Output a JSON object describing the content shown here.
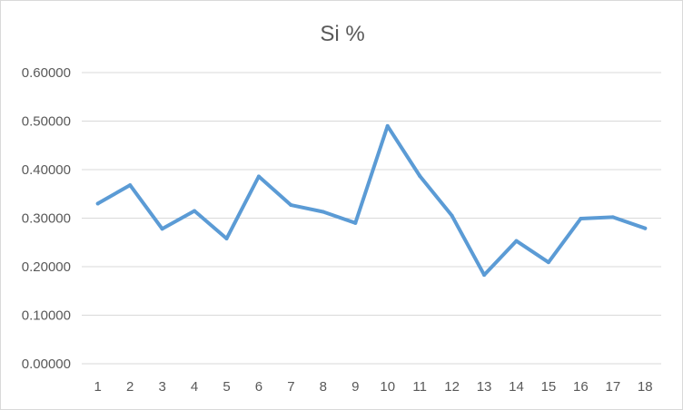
{
  "chart_data": {
    "type": "line",
    "title": "Si %",
    "xlabel": "",
    "ylabel": "",
    "categories": [
      "1",
      "2",
      "3",
      "4",
      "5",
      "6",
      "7",
      "8",
      "9",
      "10",
      "11",
      "12",
      "13",
      "14",
      "15",
      "16",
      "17",
      "18"
    ],
    "series": [
      {
        "values": [
          0.33,
          0.368,
          0.278,
          0.315,
          0.258,
          0.386,
          0.327,
          0.313,
          0.29,
          0.49,
          0.387,
          0.305,
          0.183,
          0.253,
          0.209,
          0.299,
          0.302,
          0.279
        ]
      }
    ],
    "ylim": [
      0,
      0.6
    ],
    "yticks": [
      "0.00000",
      "0.10000",
      "0.20000",
      "0.30000",
      "0.40000",
      "0.50000",
      "0.60000"
    ],
    "grid": "horizontal",
    "legend": "none",
    "colors": {
      "series": "#5b9bd5",
      "grid": "#d9d9d9",
      "text": "#595959"
    }
  }
}
